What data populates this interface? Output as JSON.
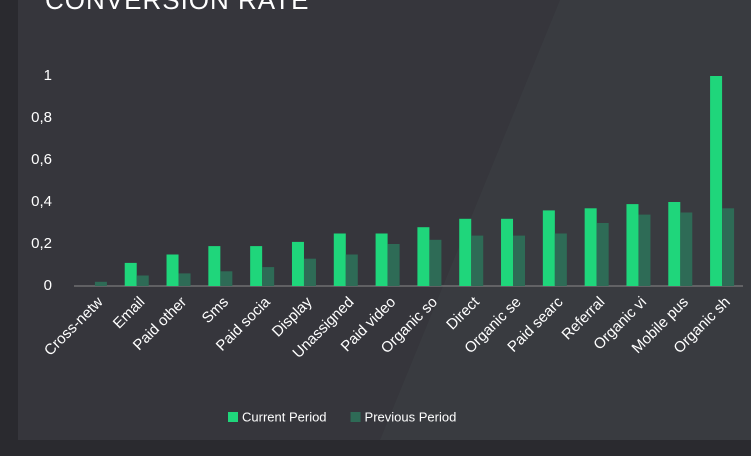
{
  "chart_data": {
    "type": "bar",
    "title": "CONVERSION RATE",
    "categories": [
      "Cross-netw",
      "Email",
      "Paid other",
      "Sms",
      "Paid socia",
      "Display",
      "Unassigned",
      "Paid video",
      "Organic so",
      "Direct",
      "Organic se",
      "Paid searc",
      "Referral",
      "Organic vi",
      "Mobile pus",
      "Organic sh"
    ],
    "series": [
      {
        "name": "Current Period",
        "color": "#1fd67b",
        "values": [
          0,
          0.11,
          0.15,
          0.19,
          0.19,
          0.21,
          0.25,
          0.25,
          0.28,
          0.32,
          0.32,
          0.36,
          0.37,
          0.39,
          0.4,
          1.0
        ]
      },
      {
        "name": "Previous Period",
        "color": "#2e6b56",
        "values": [
          0.02,
          0.05,
          0.06,
          0.07,
          0.09,
          0.13,
          0.15,
          0.2,
          0.22,
          0.24,
          0.24,
          0.25,
          0.3,
          0.34,
          0.35,
          0.37
        ]
      }
    ],
    "ylim": [
      0,
      1
    ],
    "yticks": [
      0,
      {
        "value": 0.2,
        "label": "0,2"
      },
      {
        "value": 0.4,
        "label": "0,4"
      },
      {
        "value": 0.6,
        "label": "0,6"
      },
      {
        "value": 0.8,
        "label": "0,8"
      },
      1
    ],
    "legend": "bottom"
  }
}
